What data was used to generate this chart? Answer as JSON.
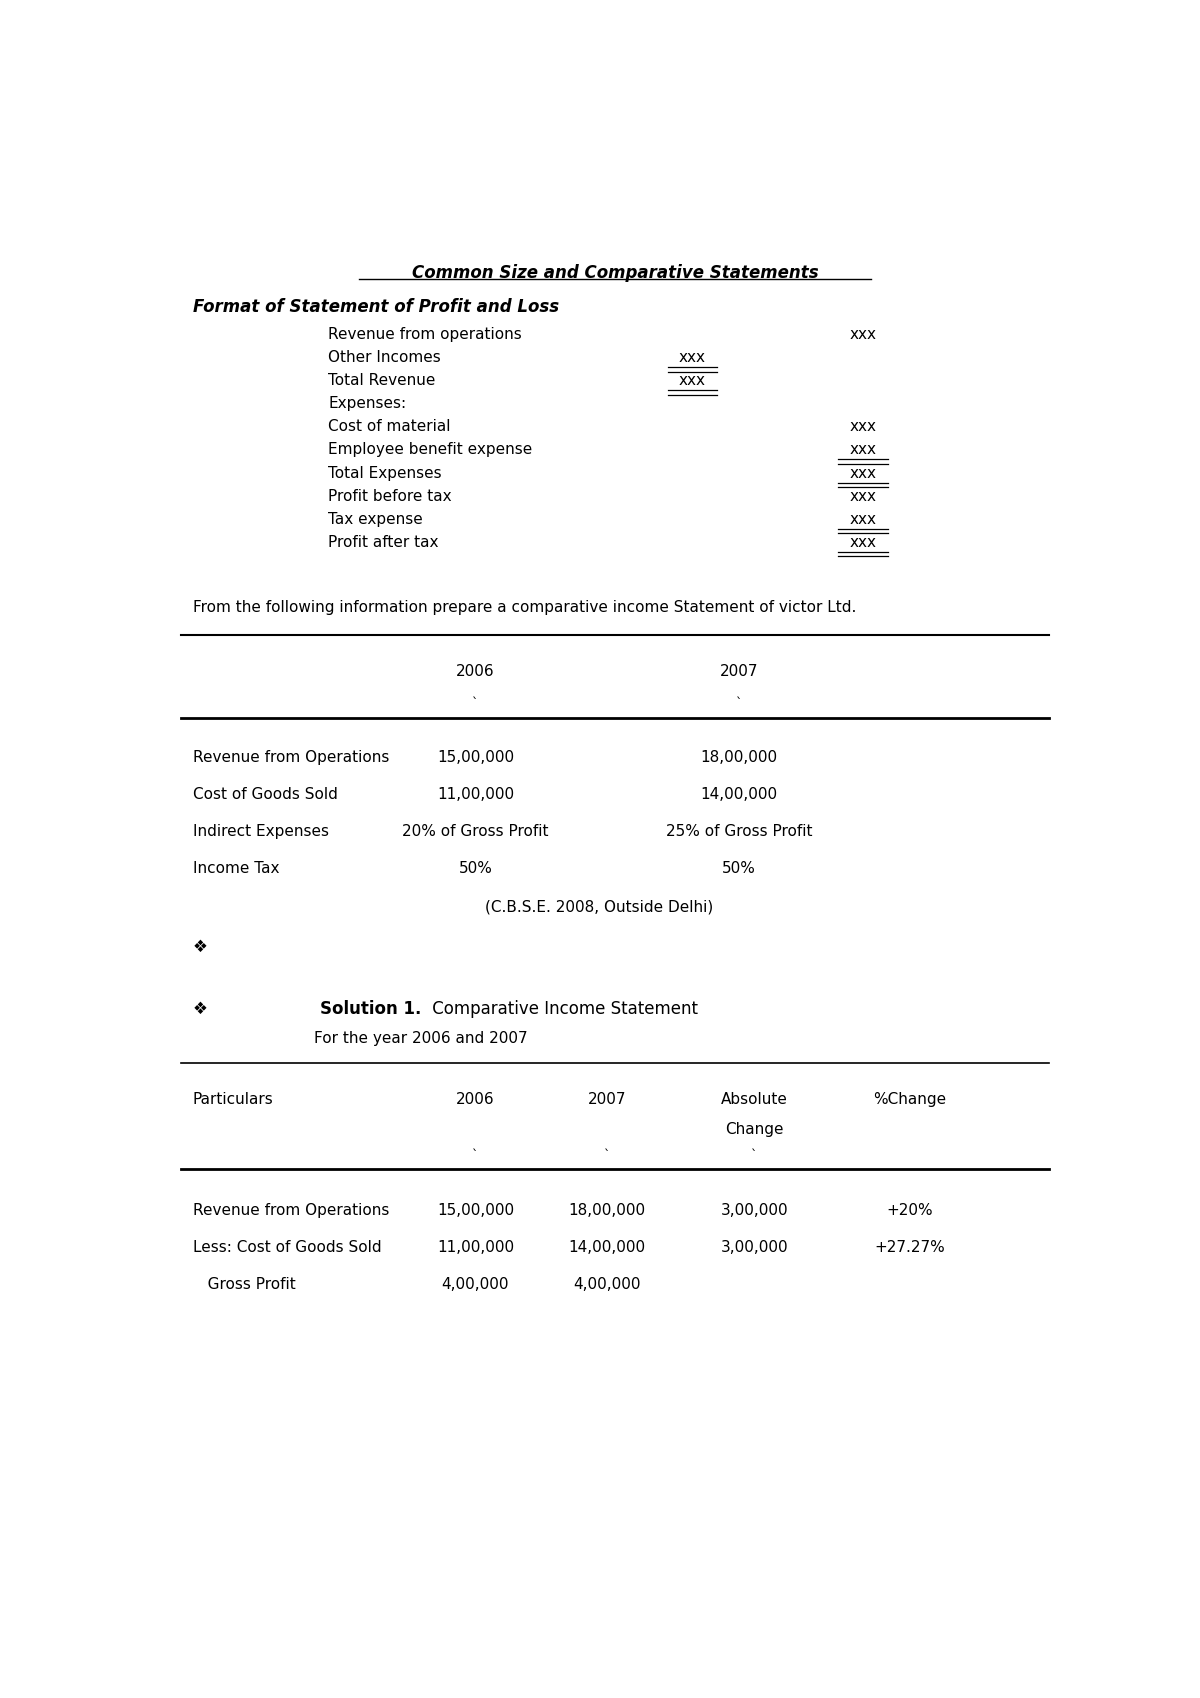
{
  "bg_color": "#ffffff",
  "title1": "Common Size and Comparative Statements",
  "subtitle1": "Format of Statement of Profit and Loss",
  "format_rows": [
    {
      "label": "Revenue from operations",
      "col1": "",
      "col2": "xxx",
      "ul1": false,
      "ul2": false
    },
    {
      "label": "Other Incomes",
      "col1": "xxx",
      "col2": "",
      "ul1": true,
      "ul2": false
    },
    {
      "label": "Total Revenue",
      "col1": "xxx",
      "col2": "",
      "ul1": true,
      "ul2": false
    },
    {
      "label": "Expenses:",
      "col1": "",
      "col2": "",
      "ul1": false,
      "ul2": false
    },
    {
      "label": "Cost of material",
      "col1": "",
      "col2": "xxx",
      "ul1": false,
      "ul2": false
    },
    {
      "label": "Employee benefit expense",
      "col1": "",
      "col2": "xxx",
      "ul1": false,
      "ul2": true
    },
    {
      "label": "Total Expenses",
      "col1": "",
      "col2": "xxx",
      "ul1": false,
      "ul2": true
    },
    {
      "label": "Profit before tax",
      "col1": "",
      "col2": "xxx",
      "ul1": false,
      "ul2": false
    },
    {
      "label": "Tax expense",
      "col1": "",
      "col2": "xxx",
      "ul1": false,
      "ul2": true
    },
    {
      "label": "Profit after tax",
      "col1": "",
      "col2": "xxx",
      "ul1": false,
      "ul2": true
    }
  ],
  "question_text": "From the following information prepare a comparative income Statement of victor Ltd.",
  "table1_rows": [
    [
      "Revenue from Operations",
      "15,00,000",
      "18,00,000"
    ],
    [
      "Cost of Goods Sold",
      "11,00,000",
      "14,00,000"
    ],
    [
      "Indirect Expenses",
      "20% of Gross Profit",
      "25% of Gross Profit"
    ],
    [
      "Income Tax",
      "50%",
      "50%"
    ]
  ],
  "table1_footer": "(C.B.S.E. 2008, Outside Delhi)",
  "bullet": "❖",
  "solution_title_bold": "Solution 1.",
  "solution_title_normal": " Comparative Income Statement",
  "solution_subtitle": "For the year 2006 and 2007",
  "table2_rows": [
    [
      "Revenue from Operations",
      "15,00,000",
      "18,00,000",
      "3,00,000",
      "+20%"
    ],
    [
      "Less: Cost of Goods Sold",
      "11,00,000",
      "14,00,000",
      "3,00,000",
      "+27.27%"
    ],
    [
      "   Gross Profit",
      "4,00,000",
      "4,00,000",
      "",
      ""
    ]
  ]
}
